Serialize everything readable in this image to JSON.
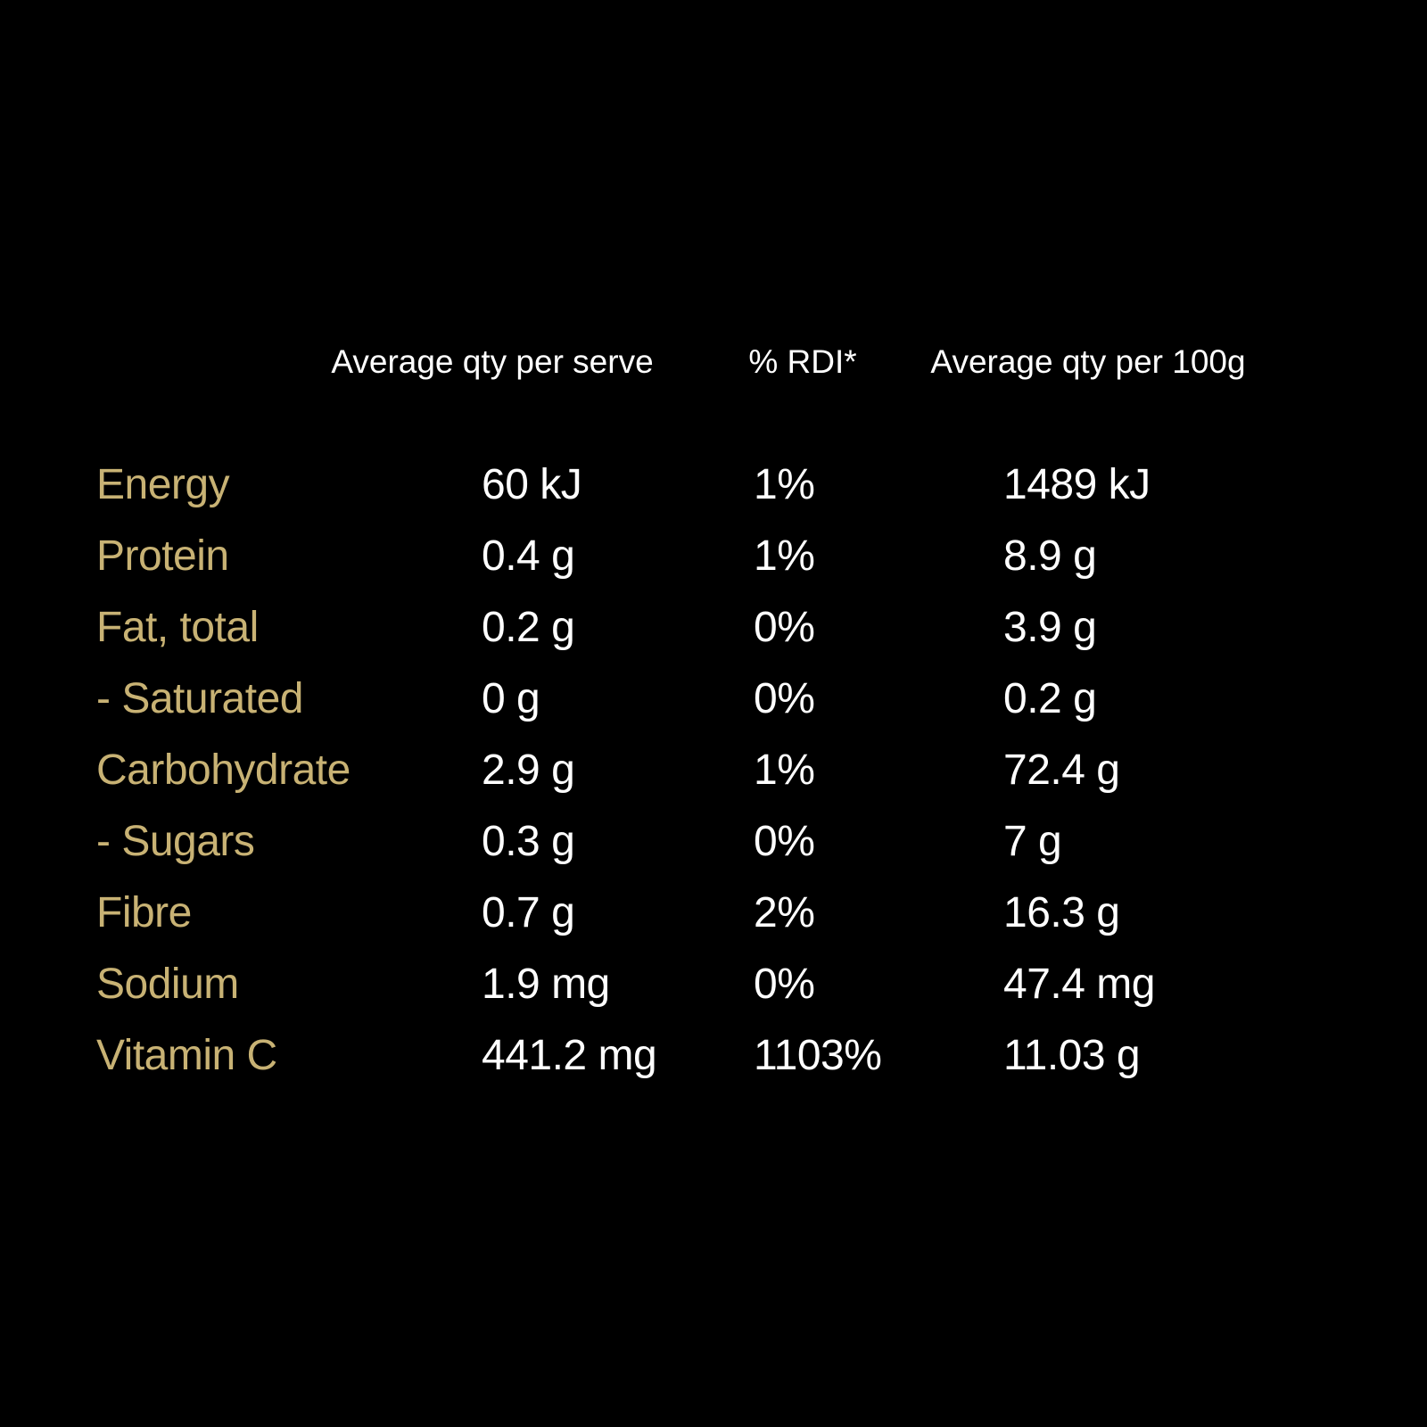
{
  "table": {
    "headers": {
      "col_serve": "Average qty per serve",
      "col_rdi": "% RDI*",
      "col_100g": "Average qty per 100g"
    },
    "rows": [
      {
        "label": "Energy",
        "per_serve": "60 kJ",
        "rdi": "1%",
        "per_100g": "1489 kJ"
      },
      {
        "label": "Protein",
        "per_serve": "0.4 g",
        "rdi": "1%",
        "per_100g": "8.9 g"
      },
      {
        "label": "Fat, total",
        "per_serve": "0.2 g",
        "rdi": "0%",
        "per_100g": "3.9 g"
      },
      {
        "label": "- Saturated",
        "per_serve": "0 g",
        "rdi": "0%",
        "per_100g": "0.2 g"
      },
      {
        "label": "Carbohydrate",
        "per_serve": "2.9 g",
        "rdi": "1%",
        "per_100g": "72.4 g"
      },
      {
        "label": "- Sugars",
        "per_serve": "0.3 g",
        "rdi": "0%",
        "per_100g": "7 g"
      },
      {
        "label": "Fibre",
        "per_serve": "0.7 g",
        "rdi": "2%",
        "per_100g": "16.3 g"
      },
      {
        "label": "Sodium",
        "per_serve": "1.9 mg",
        "rdi": "0%",
        "per_100g": "47.4 mg"
      },
      {
        "label": "Vitamin C",
        "per_serve": "441.2 mg",
        "rdi": "1103%",
        "per_100g": "11.03 g"
      }
    ],
    "colors": {
      "background": "#000000",
      "label": "#c8b274",
      "value": "#ffffff",
      "header": "#ffffff"
    }
  }
}
